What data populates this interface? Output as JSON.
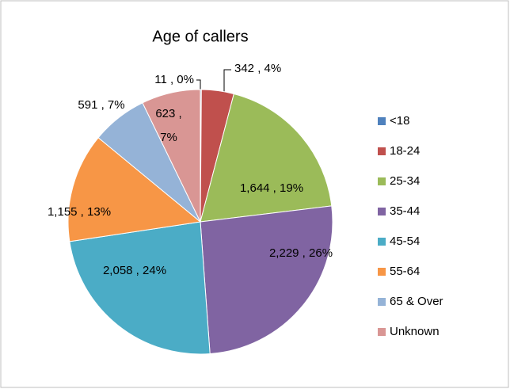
{
  "chart_data": {
    "type": "pie",
    "title": "Age of callers",
    "categories": [
      "<18",
      "18-24",
      "25-34",
      "35-44",
      "45-54",
      "55-64",
      "65 & Over",
      "Unknown"
    ],
    "values": [
      11,
      342,
      1644,
      2229,
      2058,
      1155,
      591,
      623
    ],
    "value_labels": [
      "11 , 0%",
      "342 , 4%",
      "1,644 , 19%",
      "2,229 , 26%",
      "2,058 , 24%",
      "1,155 , 13%",
      "591 , 7%",
      "623 , 7%"
    ],
    "colors": [
      "#4f81bd",
      "#c0504d",
      "#9bbb59",
      "#8064a2",
      "#4bacc6",
      "#f79646",
      "#95b3d7",
      "#d99694"
    ],
    "legend": "right"
  }
}
